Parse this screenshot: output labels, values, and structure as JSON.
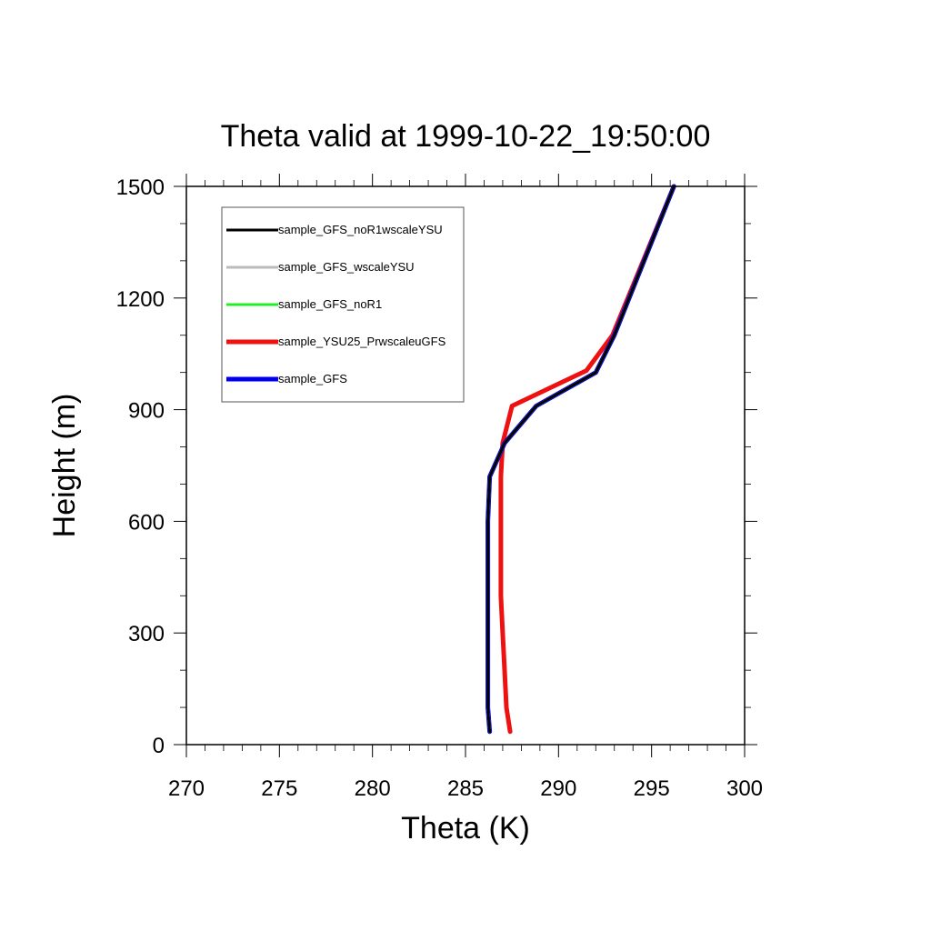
{
  "chart_data": {
    "type": "line",
    "title": "Theta valid at 1999-10-22_19:50:00",
    "xlabel": "Theta (K)",
    "ylabel": "Height (m)",
    "xlim": [
      270,
      300
    ],
    "ylim": [
      0,
      1500
    ],
    "xticks": [
      270,
      275,
      280,
      285,
      290,
      295,
      300
    ],
    "yticks": [
      0,
      300,
      600,
      900,
      1200,
      1500
    ],
    "grid": false,
    "legend_position": "top-left",
    "series": [
      {
        "name": "sample_GFS_noR1wscaleYSU",
        "color": "#000000",
        "x": [
          286.3,
          286.2,
          286.2,
          286.2,
          286.2,
          286.2,
          286.2,
          286.3,
          287.1,
          288.8,
          292.0,
          293.0,
          296.2
        ],
        "y": [
          35,
          100,
          200,
          300,
          400,
          500,
          600,
          720,
          810,
          910,
          1000,
          1100,
          1500
        ]
      },
      {
        "name": "sample_GFS_wscaleYSU",
        "color": "#bbbbbb",
        "x": [
          286.3,
          286.2,
          286.2,
          286.2,
          286.2,
          286.2,
          286.2,
          286.3,
          287.1,
          288.8,
          292.0,
          293.0,
          296.2
        ],
        "y": [
          35,
          100,
          200,
          300,
          400,
          500,
          600,
          720,
          810,
          910,
          1000,
          1100,
          1500
        ]
      },
      {
        "name": "sample_GFS_noR1",
        "color": "#22ee22",
        "x": [
          286.3,
          286.2,
          286.2,
          286.2,
          286.2,
          286.2,
          286.2,
          286.3,
          287.1,
          288.8,
          292.0,
          293.0,
          296.2
        ],
        "y": [
          35,
          100,
          200,
          300,
          400,
          500,
          600,
          720,
          810,
          910,
          1000,
          1100,
          1500
        ]
      },
      {
        "name": "sample_YSU25_PrwscaleuGFS",
        "color": "#ee1111",
        "x": [
          287.4,
          287.2,
          287.1,
          287.0,
          286.9,
          286.9,
          286.9,
          286.9,
          287.0,
          287.5,
          291.5,
          292.9,
          296.2
        ],
        "y": [
          35,
          100,
          200,
          300,
          400,
          500,
          600,
          720,
          810,
          910,
          1005,
          1100,
          1500
        ]
      },
      {
        "name": "sample_GFS",
        "color": "#0000ee",
        "x": [
          286.3,
          286.2,
          286.2,
          286.2,
          286.2,
          286.2,
          286.2,
          286.3,
          287.1,
          288.8,
          292.0,
          293.0,
          296.2
        ],
        "y": [
          35,
          100,
          200,
          300,
          400,
          500,
          600,
          720,
          810,
          910,
          1000,
          1100,
          1500
        ]
      }
    ]
  }
}
